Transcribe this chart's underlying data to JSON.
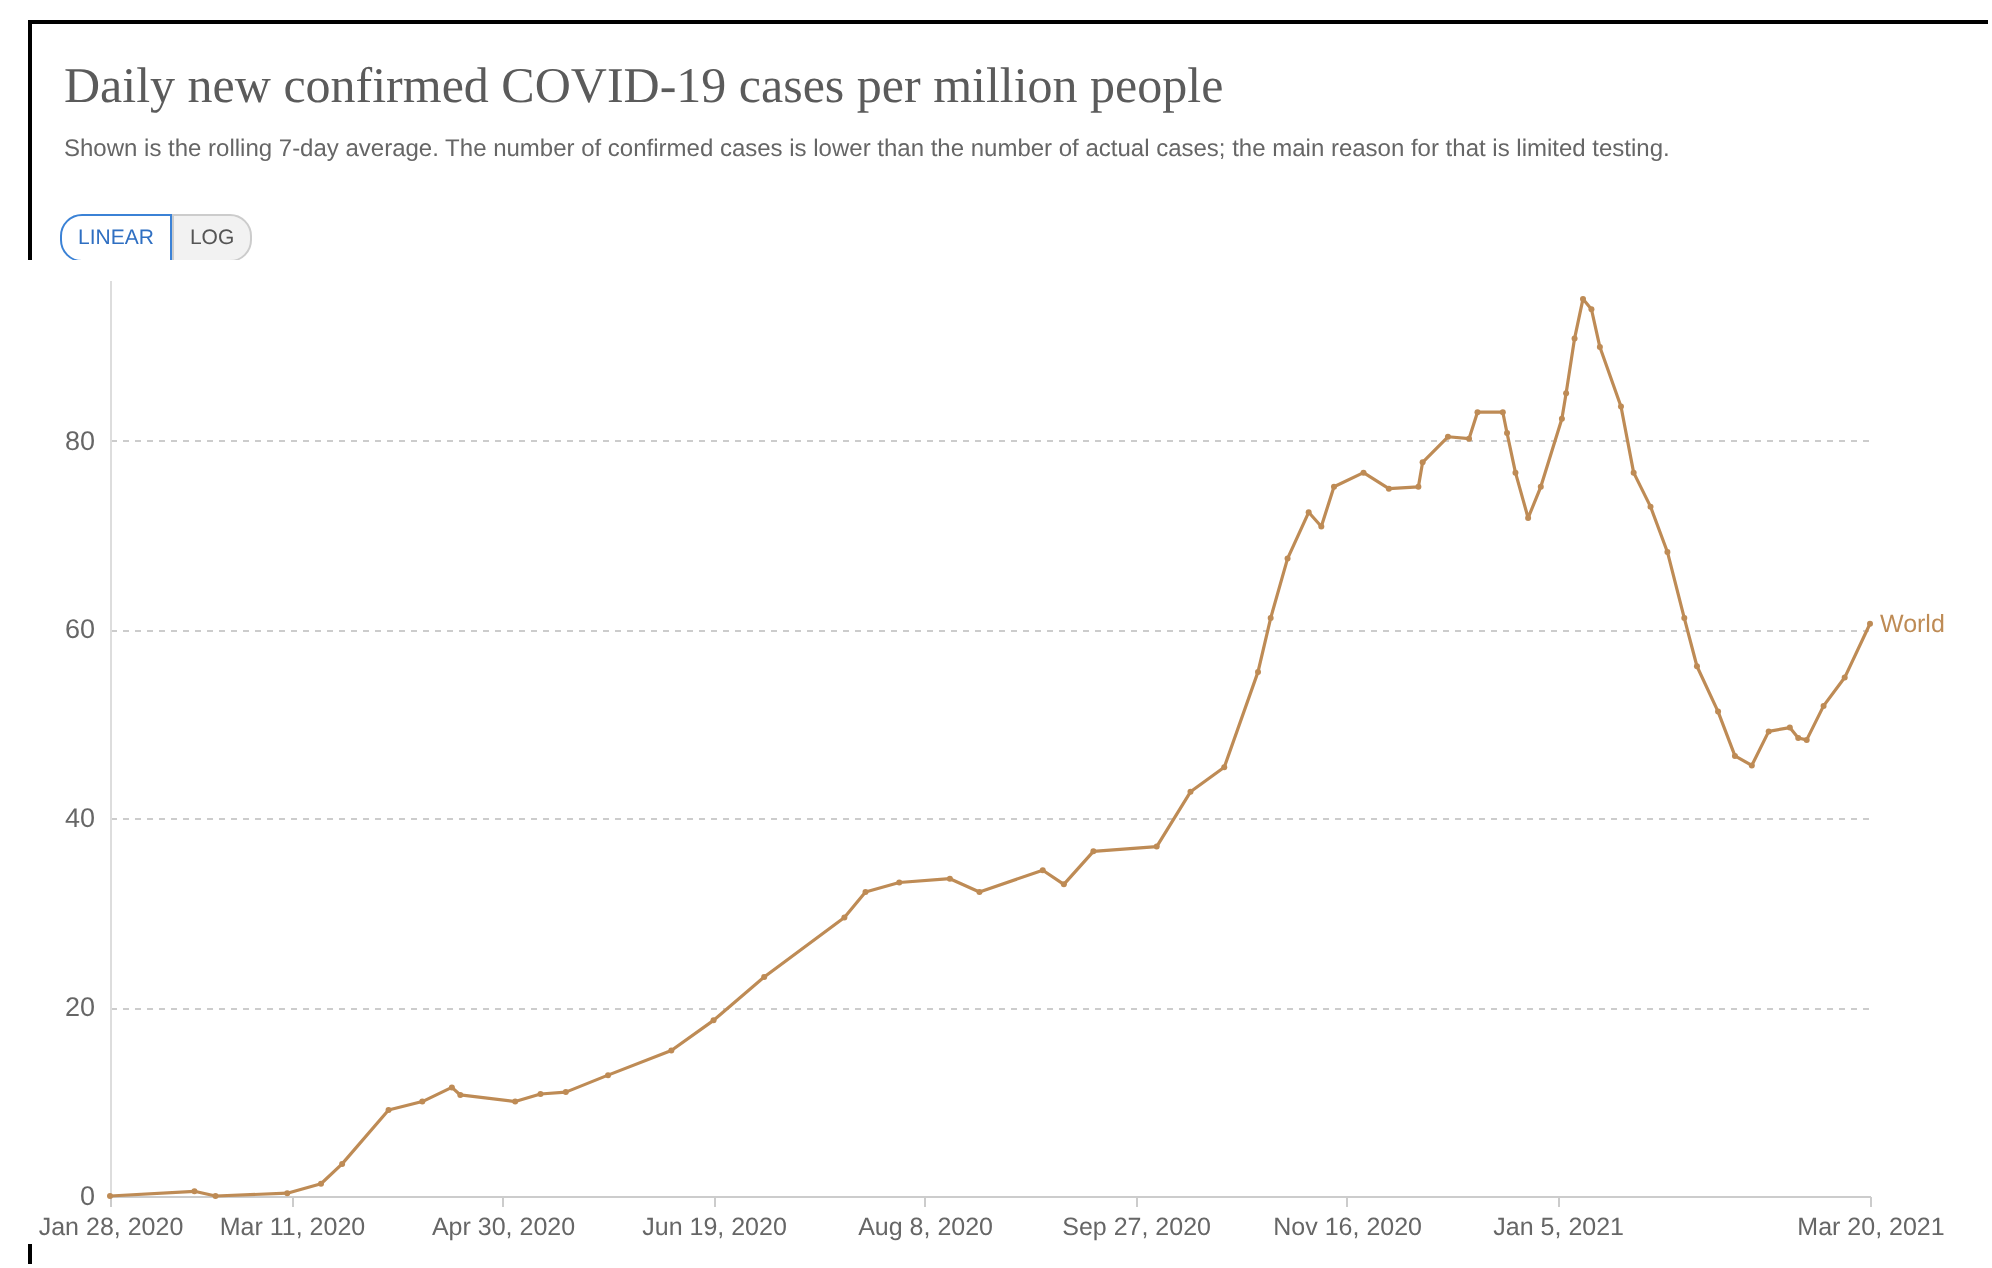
{
  "chart_data": {
    "type": "line",
    "title": "Daily new confirmed COVID-19 cases per million people",
    "subtitle": "Shown is the rolling 7-day average. The number of confirmed cases is lower than the number of actual cases; the main reason for that is limited testing.",
    "annotations": [
      "LINEAR",
      "LOG"
    ],
    "x": [
      "2020-01-28",
      "2020-02-17",
      "2020-02-22",
      "2020-03-10",
      "2020-03-18",
      "2020-03-23",
      "2020-04-03",
      "2020-04-11",
      "2020-04-18",
      "2020-04-20",
      "2020-05-03",
      "2020-05-09",
      "2020-05-15",
      "2020-05-25",
      "2020-06-09",
      "2020-06-19",
      "2020-07-01",
      "2020-07-20",
      "2020-07-25",
      "2020-08-02",
      "2020-08-14",
      "2020-08-21",
      "2020-09-05",
      "2020-09-10",
      "2020-09-17",
      "2020-10-02",
      "2020-10-10",
      "2020-10-18",
      "2020-10-26",
      "2020-10-29",
      "2020-11-02",
      "2020-11-07",
      "2020-11-10",
      "2020-11-13",
      "2020-11-20",
      "2020-11-26",
      "2020-12-03",
      "2020-12-04",
      "2020-12-10",
      "2020-12-15",
      "2020-12-17",
      "2020-12-23",
      "2020-12-24",
      "2020-12-26",
      "2020-12-29",
      "2021-01-01",
      "2021-01-06",
      "2021-01-07",
      "2021-01-09",
      "2021-01-11",
      "2021-01-13",
      "2021-01-15",
      "2021-01-20",
      "2021-01-23",
      "2021-01-27",
      "2021-01-31",
      "2021-02-04",
      "2021-02-07",
      "2021-02-12",
      "2021-02-16",
      "2021-02-20",
      "2021-02-24",
      "2021-03-01",
      "2021-03-03",
      "2021-03-05",
      "2021-03-09",
      "2021-03-14",
      "2021-03-20"
    ],
    "series": [
      {
        "name": "World",
        "color": "#be8b55",
        "values": [
          0,
          0.5,
          0,
          0.3,
          1.3,
          3.4,
          9.1,
          10,
          11.5,
          10.7,
          10,
          10.8,
          11,
          12.8,
          15.4,
          18.6,
          23.2,
          29.5,
          32.2,
          33.2,
          33.6,
          32.2,
          34.5,
          33,
          36.5,
          37,
          42.8,
          45.4,
          55.5,
          61.2,
          67.5,
          72.4,
          70.9,
          75.1,
          76.6,
          74.9,
          75.1,
          77.7,
          80.4,
          80.2,
          83,
          83,
          80.8,
          76.6,
          71.8,
          75.1,
          82.3,
          85,
          90.8,
          95,
          93.9,
          89.9,
          83.6,
          76.6,
          73,
          68.2,
          61.2,
          56.1,
          51.3,
          46.6,
          45.6,
          49.2,
          49.6,
          48.5,
          48.3,
          51.9,
          54.9,
          60.6
        ]
      }
    ],
    "xlim": [
      "2020-01-28",
      "2021-03-20"
    ],
    "xticks": [
      {
        "value": "2020-01-28",
        "label": "Jan 28, 2020"
      },
      {
        "value": "2020-03-11",
        "label": "Mar 11, 2020"
      },
      {
        "value": "2020-04-30",
        "label": "Apr 30, 2020"
      },
      {
        "value": "2020-06-19",
        "label": "Jun 19, 2020"
      },
      {
        "value": "2020-08-08",
        "label": "Aug 8, 2020"
      },
      {
        "value": "2020-09-27",
        "label": "Sep 27, 2020"
      },
      {
        "value": "2020-11-16",
        "label": "Nov 16, 2020"
      },
      {
        "value": "2021-01-05",
        "label": "Jan 5, 2021"
      },
      {
        "value": "2021-03-20",
        "label": "Mar 20, 2021"
      }
    ],
    "ylim": [
      0,
      97
    ],
    "yticks": [
      0,
      20,
      40,
      60,
      80
    ],
    "grid": "y",
    "marker": "circle",
    "line_style": "solid"
  }
}
